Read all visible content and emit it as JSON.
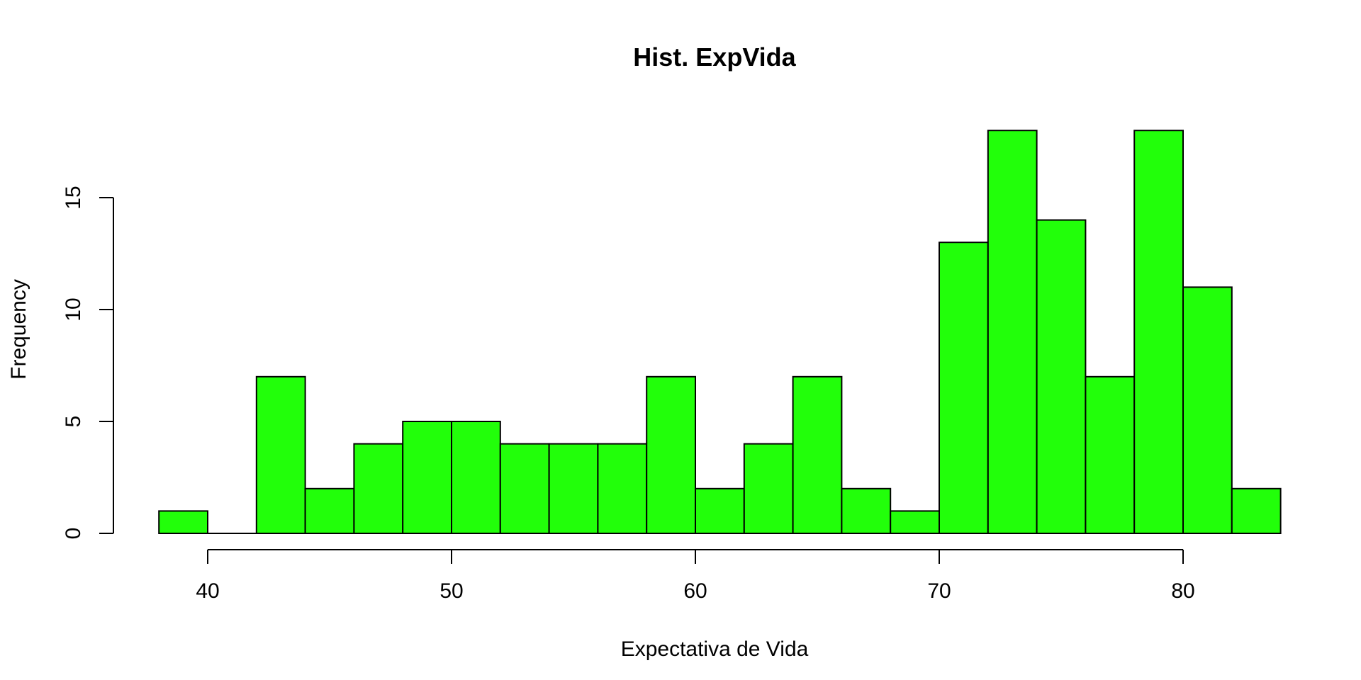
{
  "chart_data": {
    "type": "bar",
    "subtype": "histogram",
    "title": "Hist. ExpVida",
    "xlabel": "Expectativa de Vida",
    "ylabel": "Frequency",
    "bins": [
      {
        "from": 38,
        "to": 40,
        "count": 1
      },
      {
        "from": 40,
        "to": 42,
        "count": 0
      },
      {
        "from": 42,
        "to": 44,
        "count": 7
      },
      {
        "from": 44,
        "to": 46,
        "count": 2
      },
      {
        "from": 46,
        "to": 48,
        "count": 4
      },
      {
        "from": 48,
        "to": 50,
        "count": 5
      },
      {
        "from": 50,
        "to": 52,
        "count": 5
      },
      {
        "from": 52,
        "to": 54,
        "count": 4
      },
      {
        "from": 54,
        "to": 56,
        "count": 4
      },
      {
        "from": 56,
        "to": 58,
        "count": 4
      },
      {
        "from": 58,
        "to": 60,
        "count": 7
      },
      {
        "from": 60,
        "to": 62,
        "count": 2
      },
      {
        "from": 62,
        "to": 64,
        "count": 4
      },
      {
        "from": 64,
        "to": 66,
        "count": 7
      },
      {
        "from": 66,
        "to": 68,
        "count": 2
      },
      {
        "from": 68,
        "to": 70,
        "count": 1
      },
      {
        "from": 70,
        "to": 72,
        "count": 13
      },
      {
        "from": 72,
        "to": 74,
        "count": 18
      },
      {
        "from": 74,
        "to": 76,
        "count": 14
      },
      {
        "from": 76,
        "to": 78,
        "count": 7
      },
      {
        "from": 78,
        "to": 80,
        "count": 18
      },
      {
        "from": 80,
        "to": 82,
        "count": 11
      },
      {
        "from": 82,
        "to": 84,
        "count": 2
      }
    ],
    "xlim": [
      38,
      84
    ],
    "ylim": [
      0,
      18
    ],
    "x_ticks": [
      40,
      50,
      60,
      70,
      80
    ],
    "y_ticks": [
      0,
      5,
      10,
      15
    ],
    "bar_color": "#22ff0a",
    "bar_border_color": "#000000",
    "grid": false,
    "legend": "none"
  }
}
